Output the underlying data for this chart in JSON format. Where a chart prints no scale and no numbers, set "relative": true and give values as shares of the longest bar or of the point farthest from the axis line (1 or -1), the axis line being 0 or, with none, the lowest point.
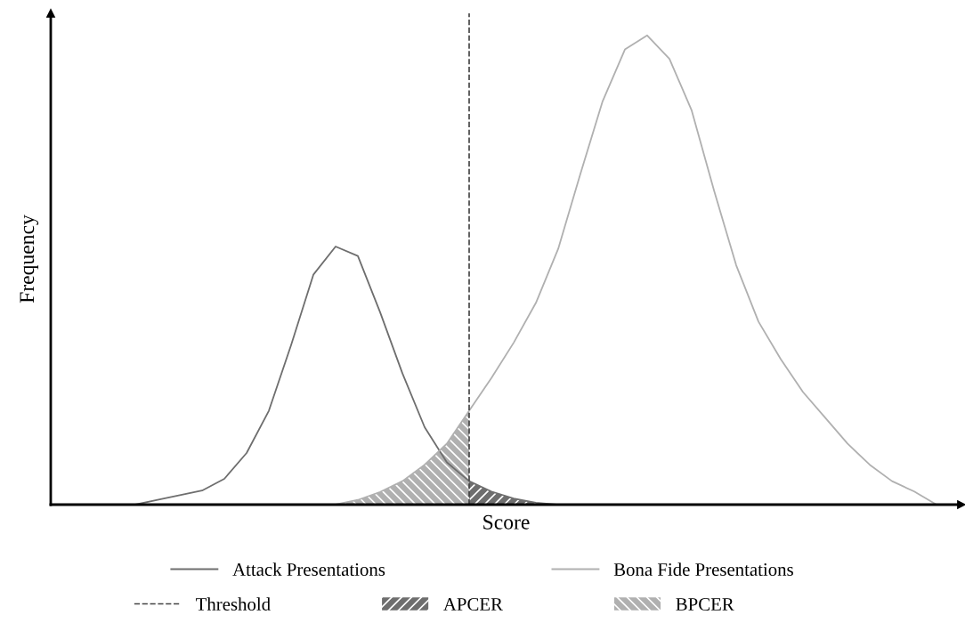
{
  "chart_data": {
    "type": "line",
    "relative": true,
    "xlabel": "Score",
    "ylabel": "Frequency",
    "tick_labels": false,
    "legend": "bottom",
    "marker": "none",
    "annotations": [
      "Threshold"
    ],
    "categories": [
      null,
      null,
      null,
      null,
      null,
      null,
      null,
      null,
      null,
      null,
      null,
      null,
      null,
      null,
      null,
      null,
      null,
      null,
      null,
      null,
      null,
      null,
      null,
      null,
      null,
      null,
      null,
      null,
      null,
      null,
      null,
      null,
      null,
      null,
      null,
      null,
      null,
      null,
      null,
      null,
      null,
      null
    ],
    "series": [
      {
        "name": "Attack Presentations",
        "color": "#6e6e6e",
        "values": [
          null,
          null,
          null,
          null,
          0,
          0.01,
          0.02,
          0.03,
          0.055,
          0.11,
          0.2,
          0.34,
          0.49,
          0.55,
          0.53,
          0.41,
          0.28,
          0.165,
          0.09,
          0.05,
          0.028,
          0.013,
          0.004,
          0,
          null,
          null,
          null,
          null,
          null,
          null,
          null,
          null,
          null,
          null,
          null,
          null,
          null,
          null,
          null,
          null,
          null,
          null
        ]
      },
      {
        "name": "Bona Fide Presentations",
        "color": "#b0b0b0",
        "values": [
          null,
          null,
          null,
          null,
          null,
          null,
          null,
          null,
          null,
          null,
          null,
          null,
          null,
          0,
          0.01,
          0.027,
          0.05,
          0.085,
          0.13,
          0.2,
          0.27,
          0.345,
          0.43,
          0.545,
          0.705,
          0.86,
          0.97,
          1,
          0.95,
          0.84,
          0.67,
          0.51,
          0.39,
          0.31,
          0.24,
          0.185,
          0.13,
          0.085,
          0.05,
          0.028,
          0,
          null
        ]
      },
      {
        "name": "APCER",
        "type": "area",
        "color": "#6e6e6e",
        "values": [
          null,
          null,
          null,
          null,
          null,
          null,
          null,
          null,
          null,
          null,
          null,
          null,
          null,
          null,
          null,
          null,
          null,
          null,
          null,
          0.05,
          0.028,
          0.013,
          0.004,
          0,
          null,
          null,
          null,
          null,
          null,
          null,
          null,
          null,
          null,
          null,
          null,
          null,
          null,
          null,
          null,
          null,
          null,
          null
        ]
      },
      {
        "name": "BPCER",
        "type": "area",
        "color": "#b0b0b0",
        "values": [
          null,
          null,
          null,
          null,
          null,
          null,
          null,
          null,
          null,
          null,
          null,
          null,
          null,
          0,
          0.01,
          0.027,
          0.05,
          0.085,
          0.13,
          0.2,
          null,
          null,
          null,
          null,
          null,
          null,
          null,
          null,
          null,
          null,
          null,
          null,
          null,
          null,
          null,
          null,
          null,
          null,
          null,
          null,
          null,
          null
        ]
      }
    ]
  }
}
